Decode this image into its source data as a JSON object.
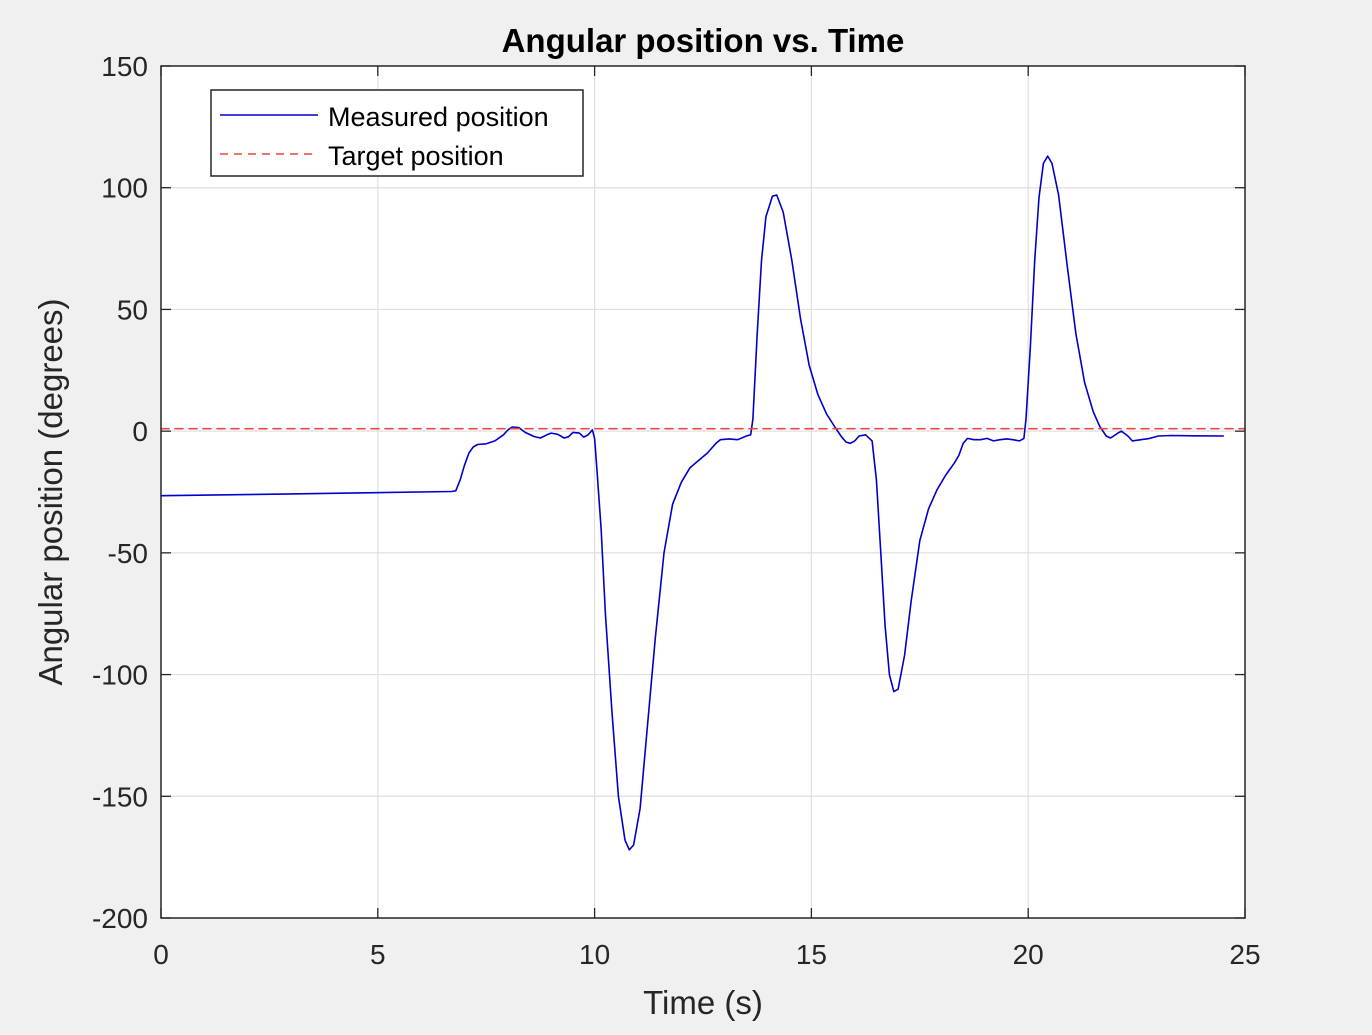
{
  "chart_data": {
    "type": "line",
    "title": "Angular position vs. Time",
    "xlabel": "Time (s)",
    "ylabel": "Angular position (degrees)",
    "xlim": [
      0,
      25
    ],
    "ylim": [
      -200,
      150
    ],
    "x_ticks": [
      "0",
      "5",
      "10",
      "15",
      "20",
      "25"
    ],
    "y_ticks": [
      "150",
      "100",
      "50",
      "0",
      "-50",
      "-100",
      "-150",
      "-200"
    ],
    "grid": true,
    "legend_position": "top-left",
    "series": [
      {
        "name": "Measured position",
        "color": "#0000cc",
        "style": "solid",
        "points": [
          [
            0,
            -26.5
          ],
          [
            3,
            -25.8
          ],
          [
            6.7,
            -24.8
          ],
          [
            6.8,
            -24.5
          ],
          [
            6.9,
            -20
          ],
          [
            7.0,
            -14
          ],
          [
            7.1,
            -9
          ],
          [
            7.2,
            -6.5
          ],
          [
            7.3,
            -5.5
          ],
          [
            7.5,
            -5.2
          ],
          [
            7.7,
            -4
          ],
          [
            7.9,
            -1.5
          ],
          [
            8.0,
            0.5
          ],
          [
            8.1,
            1.7
          ],
          [
            8.25,
            1.5
          ],
          [
            8.4,
            -0.5
          ],
          [
            8.6,
            -2.2
          ],
          [
            8.75,
            -2.8
          ],
          [
            8.9,
            -1.5
          ],
          [
            9.0,
            -0.8
          ],
          [
            9.15,
            -1.3
          ],
          [
            9.3,
            -2.8
          ],
          [
            9.4,
            -2.3
          ],
          [
            9.5,
            -0.5
          ],
          [
            9.65,
            -0.8
          ],
          [
            9.75,
            -2.5
          ],
          [
            9.85,
            -1.5
          ],
          [
            9.95,
            0.5
          ],
          [
            10.0,
            -3
          ],
          [
            10.05,
            -15
          ],
          [
            10.15,
            -40
          ],
          [
            10.25,
            -75
          ],
          [
            10.4,
            -115
          ],
          [
            10.55,
            -150
          ],
          [
            10.7,
            -168
          ],
          [
            10.8,
            -172
          ],
          [
            10.9,
            -170
          ],
          [
            11.05,
            -155
          ],
          [
            11.2,
            -125
          ],
          [
            11.4,
            -85
          ],
          [
            11.6,
            -50
          ],
          [
            11.8,
            -30
          ],
          [
            12.0,
            -21
          ],
          [
            12.2,
            -15
          ],
          [
            12.4,
            -12
          ],
          [
            12.6,
            -9
          ],
          [
            12.8,
            -5
          ],
          [
            12.9,
            -3.5
          ],
          [
            13.1,
            -3.2
          ],
          [
            13.3,
            -3.5
          ],
          [
            13.5,
            -2
          ],
          [
            13.6,
            -1.5
          ],
          [
            13.65,
            5
          ],
          [
            13.75,
            40
          ],
          [
            13.85,
            70
          ],
          [
            13.95,
            88
          ],
          [
            14.1,
            96.5
          ],
          [
            14.2,
            97
          ],
          [
            14.35,
            90
          ],
          [
            14.55,
            70
          ],
          [
            14.75,
            46
          ],
          [
            14.95,
            27
          ],
          [
            15.15,
            15
          ],
          [
            15.35,
            7
          ],
          [
            15.55,
            1.5
          ],
          [
            15.7,
            -2.5
          ],
          [
            15.8,
            -4.5
          ],
          [
            15.9,
            -5
          ],
          [
            16.0,
            -4
          ],
          [
            16.1,
            -2
          ],
          [
            16.25,
            -1.5
          ],
          [
            16.4,
            -4
          ],
          [
            16.5,
            -20
          ],
          [
            16.6,
            -50
          ],
          [
            16.7,
            -80
          ],
          [
            16.8,
            -100
          ],
          [
            16.9,
            -107
          ],
          [
            17.0,
            -106
          ],
          [
            17.15,
            -92
          ],
          [
            17.3,
            -70
          ],
          [
            17.5,
            -45
          ],
          [
            17.7,
            -32
          ],
          [
            17.9,
            -24
          ],
          [
            18.1,
            -18
          ],
          [
            18.3,
            -13
          ],
          [
            18.4,
            -10
          ],
          [
            18.5,
            -5
          ],
          [
            18.6,
            -3
          ],
          [
            18.75,
            -3.5
          ],
          [
            18.9,
            -3.5
          ],
          [
            19.05,
            -3
          ],
          [
            19.2,
            -4
          ],
          [
            19.35,
            -3.5
          ],
          [
            19.5,
            -3.2
          ],
          [
            19.65,
            -3.5
          ],
          [
            19.8,
            -4
          ],
          [
            19.9,
            -3
          ],
          [
            19.95,
            5
          ],
          [
            20.05,
            35
          ],
          [
            20.15,
            70
          ],
          [
            20.25,
            96
          ],
          [
            20.35,
            110
          ],
          [
            20.45,
            113
          ],
          [
            20.55,
            110
          ],
          [
            20.7,
            97
          ],
          [
            20.9,
            68
          ],
          [
            21.1,
            40
          ],
          [
            21.3,
            20
          ],
          [
            21.5,
            8
          ],
          [
            21.65,
            2
          ],
          [
            21.8,
            -2
          ],
          [
            21.9,
            -2.8
          ],
          [
            22.05,
            -1
          ],
          [
            22.15,
            0
          ],
          [
            22.3,
            -2
          ],
          [
            22.4,
            -4
          ],
          [
            22.6,
            -3.5
          ],
          [
            22.8,
            -3
          ],
          [
            23.0,
            -2
          ],
          [
            23.3,
            -1.8
          ],
          [
            23.8,
            -1.9
          ],
          [
            24.5,
            -2
          ]
        ]
      },
      {
        "name": "Target position",
        "color": "#e8473c",
        "style": "dashed",
        "points": [
          [
            0,
            1
          ],
          [
            25,
            1
          ]
        ]
      }
    ]
  }
}
